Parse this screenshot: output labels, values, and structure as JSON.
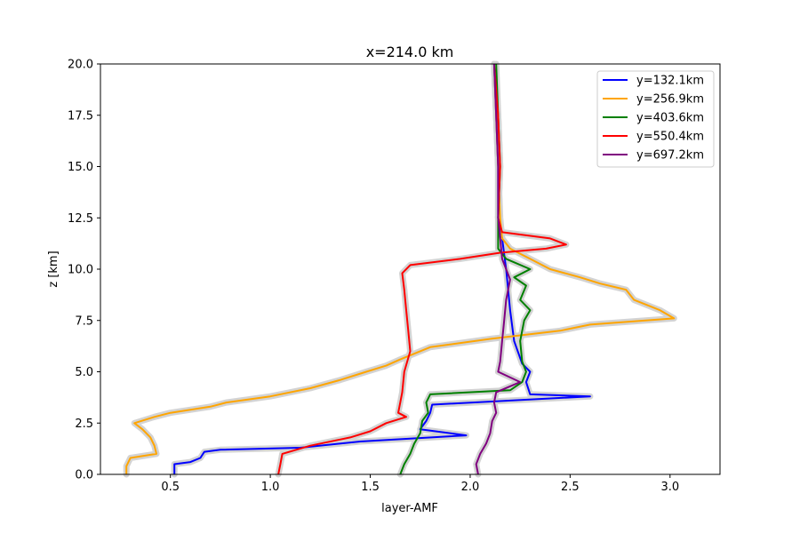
{
  "chart_data": {
    "type": "line",
    "title": "x=214.0 km",
    "xlabel": "layer-AMF",
    "ylabel": "z [km]",
    "xlim": [
      0.15,
      3.25
    ],
    "ylim": [
      0,
      20
    ],
    "xticks": [
      "0.5",
      "1.0",
      "1.5",
      "2.0",
      "2.5",
      "3.0"
    ],
    "yticks": [
      "0.0",
      "2.5",
      "5.0",
      "7.5",
      "10.0",
      "12.5",
      "15.0",
      "17.5",
      "20.0"
    ],
    "xtick_values": [
      0.5,
      1.0,
      1.5,
      2.0,
      2.5,
      3.0
    ],
    "ytick_values": [
      0,
      2.5,
      5,
      7.5,
      10,
      12.5,
      15,
      17.5,
      20
    ],
    "legend_position": "top-right",
    "uncertainty_band_color": "#d3d3d3",
    "series": [
      {
        "name": "y=132.1km",
        "color": "#0000ff",
        "points": [
          [
            0.52,
            0
          ],
          [
            0.52,
            0.5
          ],
          [
            0.6,
            0.6
          ],
          [
            0.65,
            0.8
          ],
          [
            0.67,
            1.1
          ],
          [
            0.75,
            1.2
          ],
          [
            1.15,
            1.3
          ],
          [
            1.45,
            1.6
          ],
          [
            1.98,
            1.9
          ],
          [
            1.75,
            2.2
          ],
          [
            1.78,
            2.6
          ],
          [
            1.8,
            3.0
          ],
          [
            1.81,
            3.4
          ],
          [
            2.6,
            3.8
          ],
          [
            2.3,
            3.9
          ],
          [
            2.28,
            4.5
          ],
          [
            2.3,
            5.0
          ],
          [
            2.26,
            5.4
          ],
          [
            2.22,
            6.5
          ],
          [
            2.2,
            8.0
          ],
          [
            2.18,
            10.0
          ],
          [
            2.16,
            11.5
          ],
          [
            2.14,
            12.5
          ],
          [
            2.14,
            15.0
          ],
          [
            2.13,
            17.5
          ],
          [
            2.12,
            20
          ]
        ]
      },
      {
        "name": "y=256.9km",
        "color": "#ffa500",
        "points": [
          [
            0.28,
            0
          ],
          [
            0.28,
            0.4
          ],
          [
            0.3,
            0.8
          ],
          [
            0.43,
            1.0
          ],
          [
            0.42,
            1.4
          ],
          [
            0.4,
            1.8
          ],
          [
            0.36,
            2.2
          ],
          [
            0.32,
            2.5
          ],
          [
            0.42,
            2.8
          ],
          [
            0.5,
            3.0
          ],
          [
            0.7,
            3.3
          ],
          [
            0.78,
            3.5
          ],
          [
            1.0,
            3.8
          ],
          [
            1.2,
            4.2
          ],
          [
            1.35,
            4.6
          ],
          [
            1.48,
            5.0
          ],
          [
            1.58,
            5.3
          ],
          [
            1.65,
            5.6
          ],
          [
            1.8,
            6.2
          ],
          [
            2.1,
            6.6
          ],
          [
            2.45,
            7.0
          ],
          [
            2.6,
            7.3
          ],
          [
            3.02,
            7.6
          ],
          [
            2.95,
            8.0
          ],
          [
            2.82,
            8.5
          ],
          [
            2.78,
            9.0
          ],
          [
            2.65,
            9.3
          ],
          [
            2.55,
            9.6
          ],
          [
            2.4,
            10.0
          ],
          [
            2.3,
            10.5
          ],
          [
            2.2,
            11.0
          ],
          [
            2.16,
            11.5
          ],
          [
            2.15,
            12.5
          ],
          [
            2.14,
            15.0
          ],
          [
            2.13,
            17.5
          ],
          [
            2.12,
            20
          ]
        ]
      },
      {
        "name": "y=403.6km",
        "color": "#008000",
        "points": [
          [
            1.65,
            0
          ],
          [
            1.67,
            0.5
          ],
          [
            1.7,
            1.0
          ],
          [
            1.72,
            1.5
          ],
          [
            1.75,
            2.0
          ],
          [
            1.76,
            2.6
          ],
          [
            1.79,
            3.0
          ],
          [
            1.78,
            3.5
          ],
          [
            1.8,
            3.9
          ],
          [
            2.2,
            4.1
          ],
          [
            2.26,
            4.5
          ],
          [
            2.28,
            5.0
          ],
          [
            2.26,
            5.5
          ],
          [
            2.25,
            6.5
          ],
          [
            2.27,
            7.5
          ],
          [
            2.3,
            8.0
          ],
          [
            2.25,
            8.5
          ],
          [
            2.28,
            9.2
          ],
          [
            2.22,
            9.6
          ],
          [
            2.3,
            10.0
          ],
          [
            2.18,
            10.5
          ],
          [
            2.14,
            11.0
          ],
          [
            2.14,
            12.5
          ],
          [
            2.15,
            15.0
          ],
          [
            2.14,
            17.5
          ],
          [
            2.13,
            20
          ]
        ]
      },
      {
        "name": "y=550.4km",
        "color": "#ff0000",
        "points": [
          [
            1.04,
            0
          ],
          [
            1.05,
            0.5
          ],
          [
            1.06,
            1.0
          ],
          [
            1.2,
            1.4
          ],
          [
            1.4,
            1.8
          ],
          [
            1.5,
            2.1
          ],
          [
            1.58,
            2.5
          ],
          [
            1.68,
            2.8
          ],
          [
            1.64,
            3.0
          ],
          [
            1.65,
            3.5
          ],
          [
            1.66,
            4.0
          ],
          [
            1.67,
            5.0
          ],
          [
            1.7,
            6.0
          ],
          [
            1.69,
            7.0
          ],
          [
            1.68,
            8.0
          ],
          [
            1.67,
            9.0
          ],
          [
            1.66,
            9.8
          ],
          [
            1.7,
            10.2
          ],
          [
            1.95,
            10.5
          ],
          [
            2.15,
            10.8
          ],
          [
            2.38,
            11.0
          ],
          [
            2.48,
            11.2
          ],
          [
            2.4,
            11.5
          ],
          [
            2.16,
            11.8
          ],
          [
            2.14,
            12.5
          ],
          [
            2.15,
            15.0
          ],
          [
            2.14,
            17.5
          ],
          [
            2.12,
            20
          ]
        ]
      },
      {
        "name": "y=697.2km",
        "color": "#800080",
        "points": [
          [
            2.04,
            0
          ],
          [
            2.03,
            0.5
          ],
          [
            2.05,
            1.0
          ],
          [
            2.08,
            1.5
          ],
          [
            2.1,
            2.0
          ],
          [
            2.11,
            2.6
          ],
          [
            2.13,
            3.0
          ],
          [
            2.12,
            3.5
          ],
          [
            2.13,
            4.0
          ],
          [
            2.25,
            4.5
          ],
          [
            2.14,
            5.0
          ],
          [
            2.15,
            5.5
          ],
          [
            2.16,
            6.5
          ],
          [
            2.17,
            7.5
          ],
          [
            2.18,
            8.5
          ],
          [
            2.2,
            9.5
          ],
          [
            2.18,
            10.0
          ],
          [
            2.16,
            10.5
          ],
          [
            2.15,
            11.5
          ],
          [
            2.14,
            12.5
          ],
          [
            2.14,
            15.0
          ],
          [
            2.13,
            17.5
          ],
          [
            2.12,
            20
          ]
        ]
      }
    ]
  }
}
